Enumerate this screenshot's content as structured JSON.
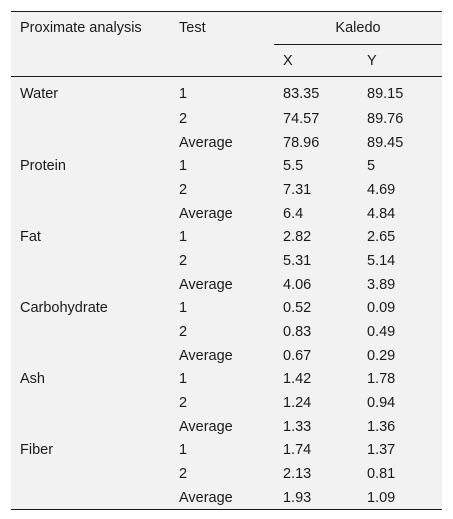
{
  "table": {
    "headers": {
      "analysis": "Proximate analysis",
      "test": "Test",
      "group": "Kaledo",
      "x": "X",
      "y": "Y"
    },
    "groups": [
      {
        "name": "Water",
        "rows": [
          {
            "test": "1",
            "x": "83.35",
            "y": "89.15"
          },
          {
            "test": "2",
            "x": "74.57",
            "y": "89.76"
          },
          {
            "test": "Average",
            "x": "78.96",
            "y": "89.45"
          }
        ]
      },
      {
        "name": "Protein",
        "rows": [
          {
            "test": "1",
            "x": "5.5",
            "y": "5"
          },
          {
            "test": "2",
            "x": "7.31",
            "y": "4.69"
          },
          {
            "test": "Average",
            "x": "6.4",
            "y": "4.84"
          }
        ]
      },
      {
        "name": "Fat",
        "rows": [
          {
            "test": "1",
            "x": "2.82",
            "y": "2.65"
          },
          {
            "test": "2",
            "x": "5.31",
            "y": "5.14"
          },
          {
            "test": "Average",
            "x": "4.06",
            "y": "3.89"
          }
        ]
      },
      {
        "name": "Carbohydrate",
        "rows": [
          {
            "test": "1",
            "x": "0.52",
            "y": "0.09"
          },
          {
            "test": "2",
            "x": "0.83",
            "y": "0.49"
          },
          {
            "test": "Average",
            "x": "0.67",
            "y": "0.29"
          }
        ]
      },
      {
        "name": "Ash",
        "rows": [
          {
            "test": "1",
            "x": "1.42",
            "y": "1.78"
          },
          {
            "test": "2",
            "x": "1.24",
            "y": "0.94"
          },
          {
            "test": "Average",
            "x": "1.33",
            "y": "1.36"
          }
        ]
      },
      {
        "name": "Fiber",
        "rows": [
          {
            "test": "1",
            "x": "1.74",
            "y": "1.37"
          },
          {
            "test": "2",
            "x": "2.13",
            "y": "0.81"
          },
          {
            "test": "Average",
            "x": "1.93",
            "y": "1.09"
          }
        ]
      }
    ]
  }
}
